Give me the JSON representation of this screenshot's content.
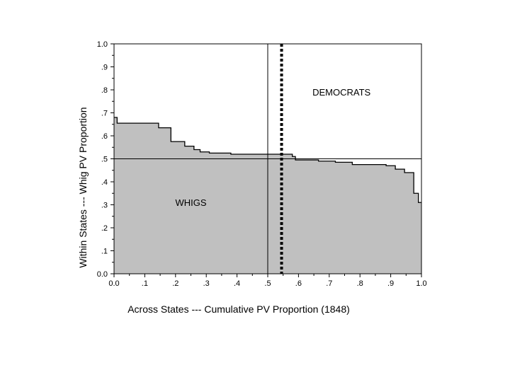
{
  "chart_data": {
    "type": "area",
    "title": "",
    "xlabel": "Across States --- Cumulative PV Proportion (1848)",
    "ylabel": "Within States --- Whig PV Proportion",
    "xlim": [
      0.0,
      1.0
    ],
    "ylim": [
      0.0,
      1.0
    ],
    "grid": false,
    "legend": "none",
    "x_tick_labels": [
      "0.0",
      ".1",
      ".2",
      ".3",
      ".4",
      ".5",
      ".6",
      ".7",
      ".8",
      ".9",
      "1.0"
    ],
    "y_tick_labels": [
      "0.0",
      ".1",
      ".2",
      ".3",
      ".4",
      ".5",
      ".6",
      ".7",
      ".8",
      ".9",
      "1.0"
    ],
    "series": [
      {
        "values_step": [
          {
            "x": 0.0,
            "y": 0.68
          },
          {
            "x": 0.01,
            "y": 0.655
          },
          {
            "x": 0.14,
            "y": 0.655
          },
          {
            "x": 0.145,
            "y": 0.635
          },
          {
            "x": 0.185,
            "y": 0.575
          },
          {
            "x": 0.23,
            "y": 0.555
          },
          {
            "x": 0.26,
            "y": 0.54
          },
          {
            "x": 0.28,
            "y": 0.53
          },
          {
            "x": 0.31,
            "y": 0.525
          },
          {
            "x": 0.38,
            "y": 0.52
          },
          {
            "x": 0.58,
            "y": 0.51
          },
          {
            "x": 0.59,
            "y": 0.495
          },
          {
            "x": 0.665,
            "y": 0.49
          },
          {
            "x": 0.72,
            "y": 0.485
          },
          {
            "x": 0.775,
            "y": 0.475
          },
          {
            "x": 0.885,
            "y": 0.47
          },
          {
            "x": 0.915,
            "y": 0.455
          },
          {
            "x": 0.945,
            "y": 0.44
          },
          {
            "x": 0.975,
            "y": 0.35
          },
          {
            "x": 0.99,
            "y": 0.31
          }
        ]
      }
    ],
    "reference_lines": {
      "horizontal_y": 0.5,
      "vertical_solid_x": 0.5,
      "vertical_dotted_x": 0.545
    },
    "annotations": [
      {
        "text": "DEMOCRATS",
        "x": 0.74,
        "y": 0.775
      },
      {
        "text": "WHIGS",
        "x": 0.25,
        "y": 0.295
      }
    ],
    "colors": {
      "fill": "#c0c0c0",
      "line": "#000000",
      "background": "#ffffff"
    }
  }
}
